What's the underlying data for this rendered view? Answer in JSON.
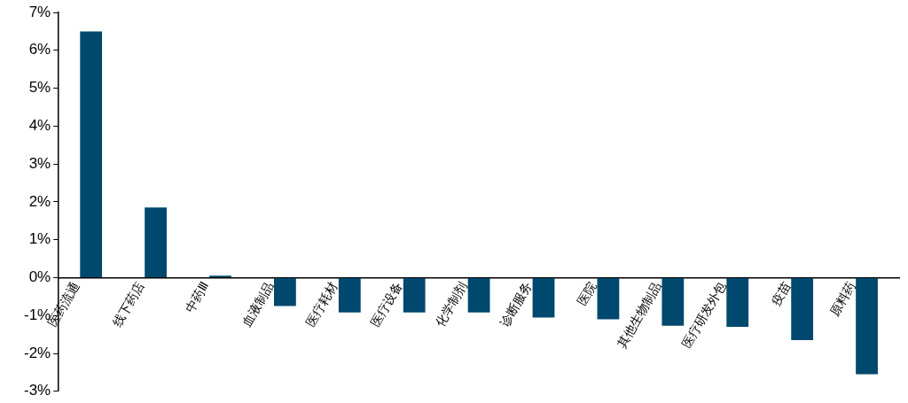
{
  "chart_data": {
    "type": "bar",
    "categories": [
      "医药流通",
      "线下药店",
      "中药Ⅲ",
      "血液制品",
      "医疗耗材",
      "医疗设备",
      "化学制剂",
      "诊断服务",
      "医院",
      "其他生物制品",
      "医疗研发外包",
      "疫苗",
      "原料药"
    ],
    "values": [
      6.5,
      1.85,
      0.05,
      -0.75,
      -0.92,
      -0.92,
      -0.92,
      -1.05,
      -1.1,
      -1.27,
      -1.3,
      -1.65,
      -2.55
    ],
    "color": "#00486e",
    "ylim": [
      -3,
      7
    ],
    "yticks": [
      {
        "value": -3,
        "label": "-3%"
      },
      {
        "value": -2,
        "label": "-2%"
      },
      {
        "value": -1,
        "label": "-1%"
      },
      {
        "value": 0,
        "label": "0%"
      },
      {
        "value": 1,
        "label": "1%"
      },
      {
        "value": 2,
        "label": "2%"
      },
      {
        "value": 3,
        "label": "3%"
      },
      {
        "value": 4,
        "label": "4%"
      },
      {
        "value": 5,
        "label": "5%"
      },
      {
        "value": 6,
        "label": "6%"
      },
      {
        "value": 7,
        "label": "7%"
      }
    ],
    "grid": false,
    "legend": false
  }
}
